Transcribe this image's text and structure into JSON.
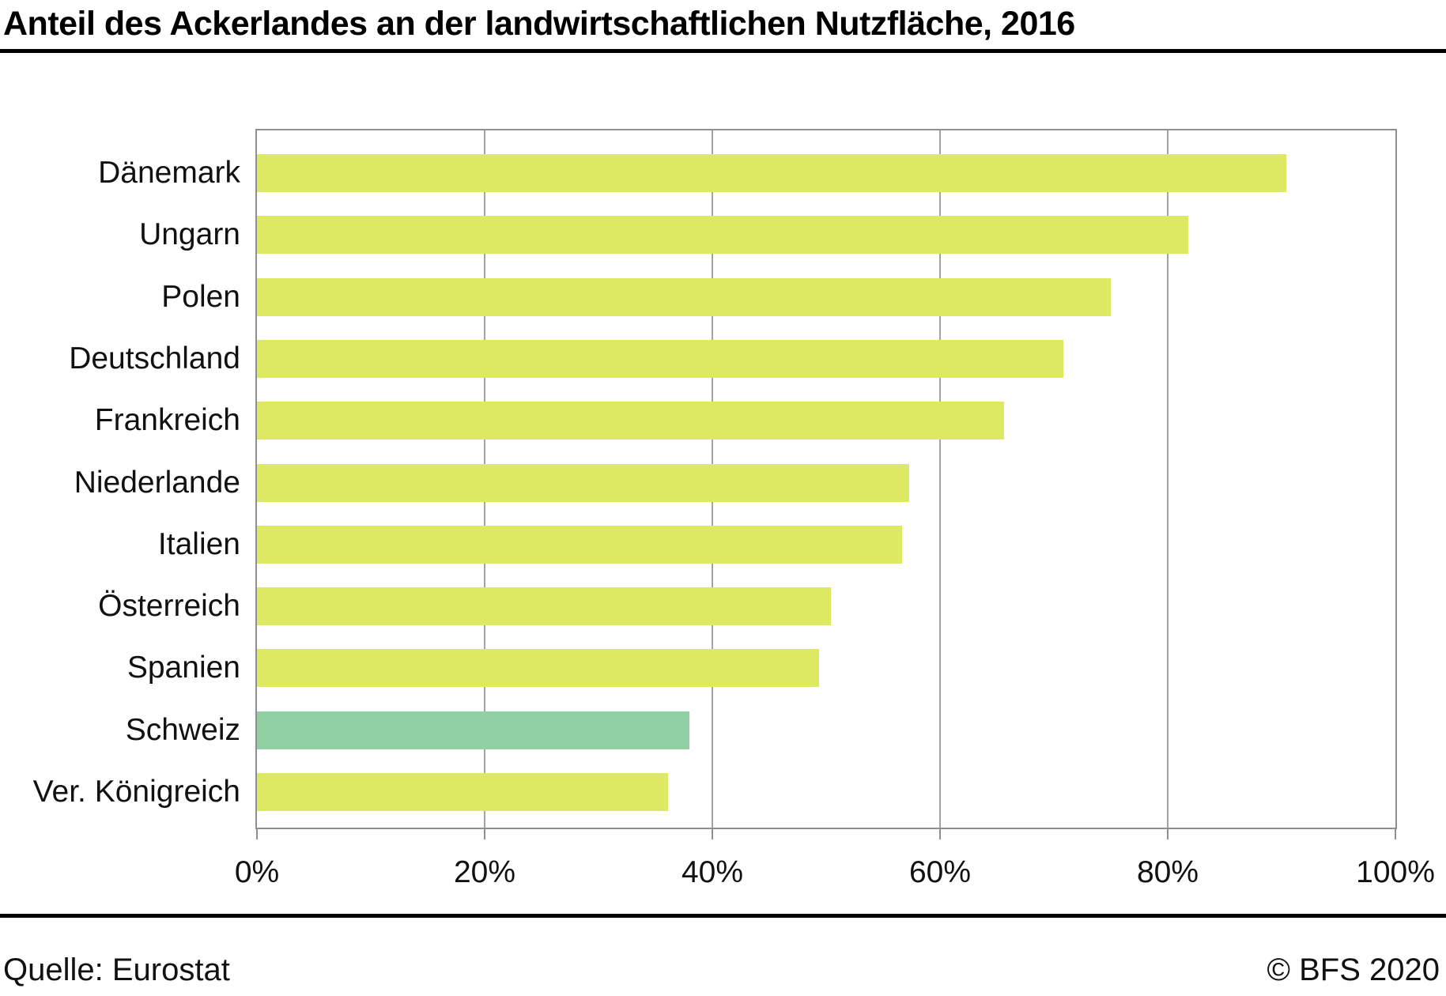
{
  "header": {
    "title": "Anteil des Ackerlandes an der landwirtschaftlichen Nutzfläche, 2016"
  },
  "footer": {
    "source": "Quelle: Eurostat",
    "copyright": "© BFS 2020"
  },
  "chart_data": {
    "type": "bar",
    "orientation": "horizontal",
    "title": "Anteil des Ackerlandes an der landwirtschaftlichen Nutzfläche, 2016",
    "categories": [
      "Dänemark",
      "Ungarn",
      "Polen",
      "Deutschland",
      "Frankreich",
      "Niederlande",
      "Italien",
      "Österreich",
      "Spanien",
      "Schweiz",
      "Ver. Königreich"
    ],
    "values": [
      90.4,
      81.8,
      75.0,
      70.8,
      65.6,
      57.3,
      56.7,
      50.4,
      49.4,
      38.0,
      36.1
    ],
    "unit": "%",
    "xlabel": "",
    "ylabel": "",
    "xlim": [
      0,
      100
    ],
    "x_ticks": [
      0,
      20,
      40,
      60,
      80,
      100
    ],
    "x_tick_labels": [
      "0%",
      "20%",
      "40%",
      "60%",
      "80%",
      "100%"
    ],
    "grid": "vertical gridlines at tick positions, drawn behind bars",
    "legend": "none",
    "highlight_category": "Schweiz",
    "colors": {
      "bar_default": "#dde962",
      "bar_highlight": "#90d0a2",
      "gridline": "#a3a3a3",
      "frame": "#8f8f8f",
      "text": "#111111",
      "rule": "#000000"
    }
  }
}
